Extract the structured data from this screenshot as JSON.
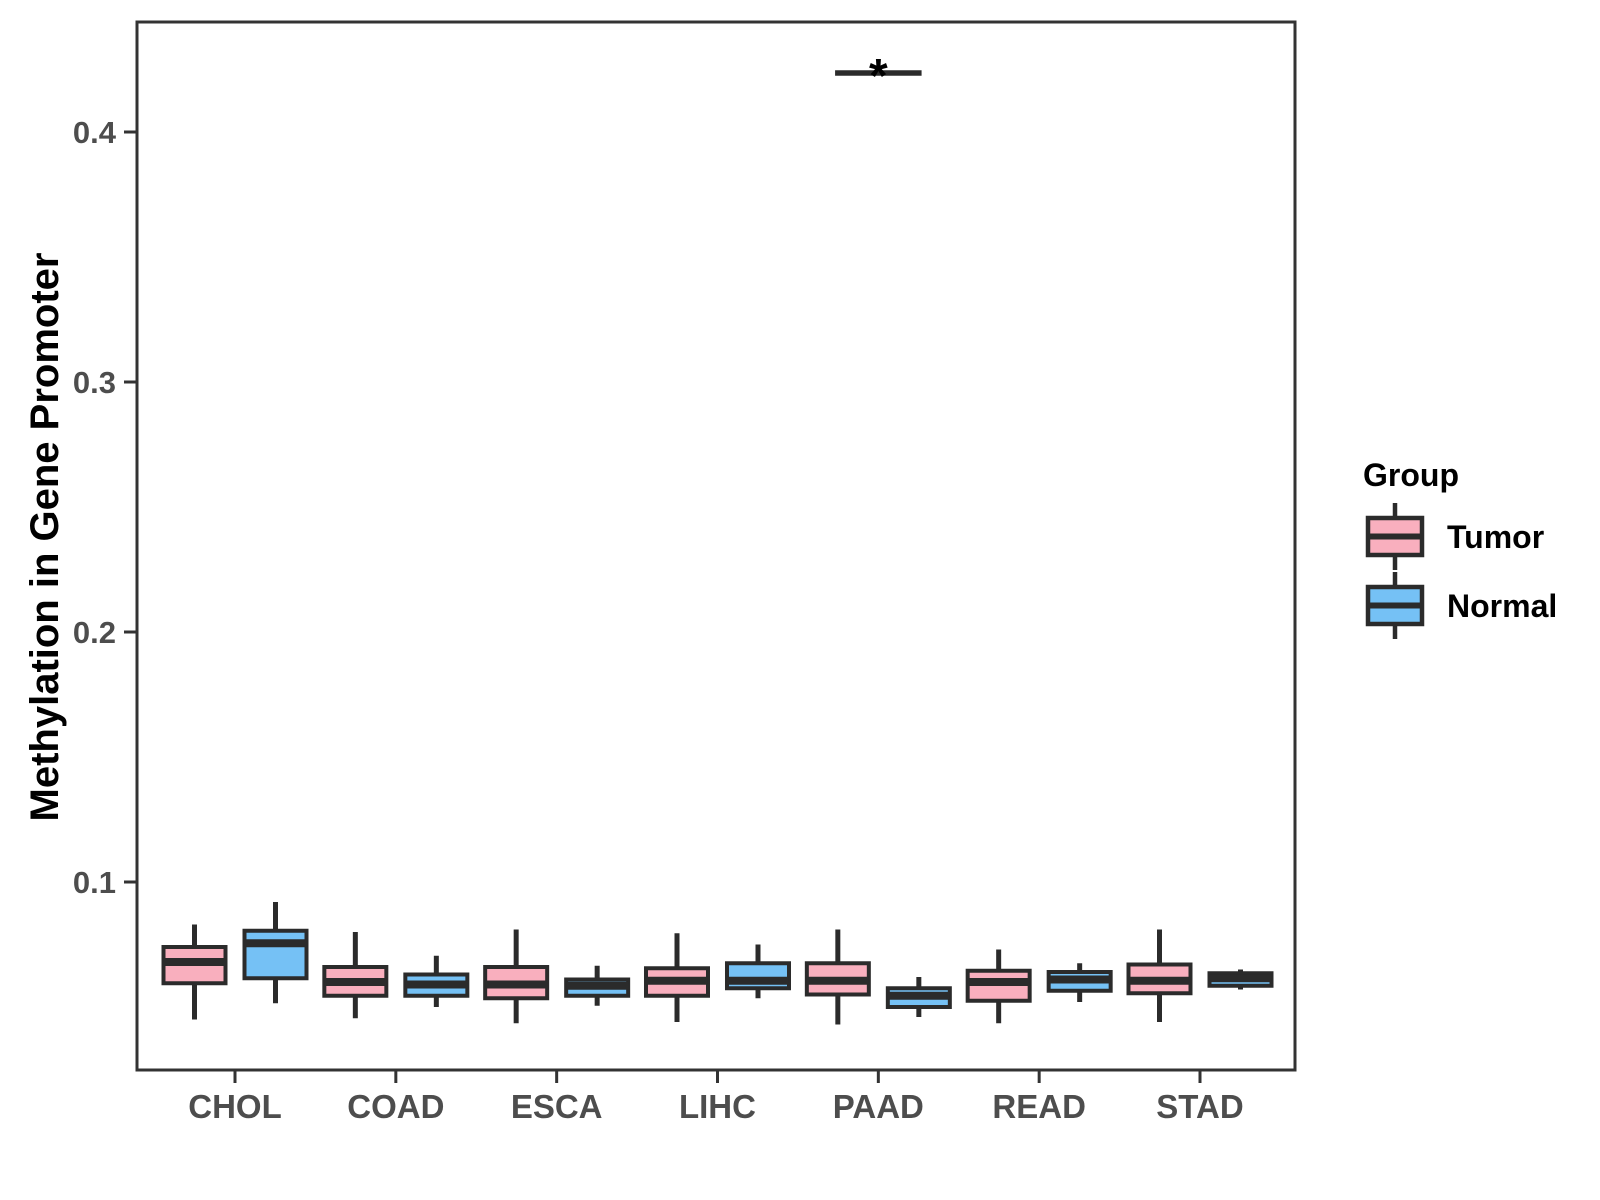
{
  "chart_data": {
    "type": "boxplot",
    "title": "",
    "xlabel": "",
    "ylabel": "Methylation in Gene Promoter",
    "categories": [
      "CHOL",
      "COAD",
      "ESCA",
      "LIHC",
      "PAAD",
      "READ",
      "STAD"
    ],
    "y_ticks": [
      0.1,
      0.2,
      0.3,
      0.4
    ],
    "ylim": [
      0.025,
      0.444
    ],
    "grid": false,
    "legend": {
      "title": "Group",
      "position": "right",
      "entries": [
        {
          "label": "Tumor",
          "color": "#F9AFBE"
        },
        {
          "label": "Normal",
          "color": "#75C1F5"
        }
      ]
    },
    "series": [
      {
        "name": "Tumor",
        "color": "#F9AFBE",
        "boxes": [
          {
            "category": "CHOL",
            "low": 0.045,
            "q1": 0.0595,
            "median": 0.068,
            "q3": 0.074,
            "high": 0.083
          },
          {
            "category": "COAD",
            "low": 0.0455,
            "q1": 0.0545,
            "median": 0.06,
            "q3": 0.066,
            "high": 0.08
          },
          {
            "category": "ESCA",
            "low": 0.0435,
            "q1": 0.0535,
            "median": 0.059,
            "q3": 0.066,
            "high": 0.081
          },
          {
            "category": "LIHC",
            "low": 0.044,
            "q1": 0.0545,
            "median": 0.0605,
            "q3": 0.0655,
            "high": 0.0795
          },
          {
            "category": "PAAD",
            "low": 0.043,
            "q1": 0.055,
            "median": 0.0605,
            "q3": 0.0675,
            "high": 0.081
          },
          {
            "category": "READ",
            "low": 0.0435,
            "q1": 0.0525,
            "median": 0.06,
            "q3": 0.0645,
            "high": 0.073
          },
          {
            "category": "STAD",
            "low": 0.044,
            "q1": 0.0555,
            "median": 0.0605,
            "q3": 0.067,
            "high": 0.081
          }
        ]
      },
      {
        "name": "Normal",
        "color": "#75C1F5",
        "boxes": [
          {
            "category": "CHOL",
            "low": 0.0515,
            "q1": 0.0615,
            "median": 0.0755,
            "q3": 0.0805,
            "high": 0.092
          },
          {
            "category": "COAD",
            "low": 0.05,
            "q1": 0.0545,
            "median": 0.059,
            "q3": 0.063,
            "high": 0.0705
          },
          {
            "category": "ESCA",
            "low": 0.0505,
            "q1": 0.0545,
            "median": 0.0585,
            "q3": 0.061,
            "high": 0.0665
          },
          {
            "category": "LIHC",
            "low": 0.0535,
            "q1": 0.0575,
            "median": 0.0605,
            "q3": 0.0675,
            "high": 0.075
          },
          {
            "category": "PAAD",
            "low": 0.046,
            "q1": 0.05,
            "median": 0.0545,
            "q3": 0.0575,
            "high": 0.062
          },
          {
            "category": "READ",
            "low": 0.052,
            "q1": 0.0565,
            "median": 0.061,
            "q3": 0.064,
            "high": 0.0675
          },
          {
            "category": "STAD",
            "low": 0.057,
            "q1": 0.0585,
            "median": 0.0615,
            "q3": 0.0635,
            "high": 0.065
          }
        ]
      }
    ],
    "annotations": [
      {
        "type": "significance",
        "category": "PAAD",
        "label": "*",
        "y": 0.4236
      }
    ]
  },
  "colors": {
    "background": "#FFFFFF",
    "panel_border": "#333333",
    "box_outline": "#2B2B2B",
    "tick_mark": "#333333",
    "tick_text": "#4D4D4D",
    "title_text": "#000000",
    "tumor_fill": "#F9AFBE",
    "normal_fill": "#75C1F5"
  }
}
